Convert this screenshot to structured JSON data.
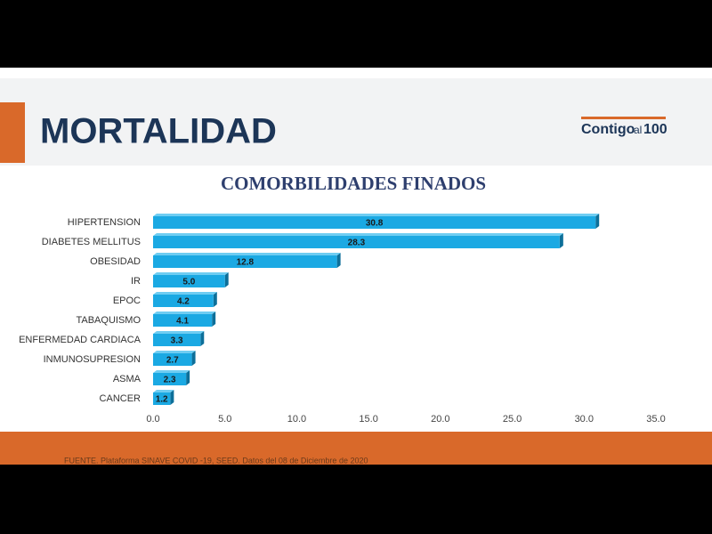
{
  "slide": {
    "title": "MORTALIDAD",
    "logo": [
      "Contigo",
      "al",
      "100"
    ],
    "source": "FUENTE. Plataforma SINAVE COVID -19, SEED. Datos del 08 de Diciembre de 2020"
  },
  "chart_data": {
    "type": "hbar",
    "title": "COMORBILIDADES FINADOS",
    "categories": [
      "HIPERTENSION",
      "DIABETES MELLITUS",
      "OBESIDAD",
      "IR",
      "EPOC",
      "TABAQUISMO",
      "ENFERMEDAD CARDIACA",
      "INMUNOSUPRESION",
      "ASMA",
      "CANCER"
    ],
    "values": [
      30.8,
      28.3,
      12.8,
      5.0,
      4.2,
      4.1,
      3.3,
      2.7,
      2.3,
      1.2
    ],
    "value_labels": [
      "30.8",
      "28.3",
      "12.8",
      "5.0",
      "4.2",
      "4.1",
      "3.3",
      "2.7",
      "2.3",
      "1.2"
    ],
    "color": "#1ba9e3",
    "xlim": [
      0,
      35
    ],
    "xticks": [
      {
        "value": 0,
        "label": "0.0"
      },
      {
        "value": 5,
        "label": "5.0"
      },
      {
        "value": 10,
        "label": "10.0"
      },
      {
        "value": 15,
        "label": "15.0"
      },
      {
        "value": 20,
        "label": "20.0"
      },
      {
        "value": 25,
        "label": "25.0"
      },
      {
        "value": 30,
        "label": "30.0"
      },
      {
        "value": 35,
        "label": "35.0"
      }
    ],
    "grid": false
  }
}
